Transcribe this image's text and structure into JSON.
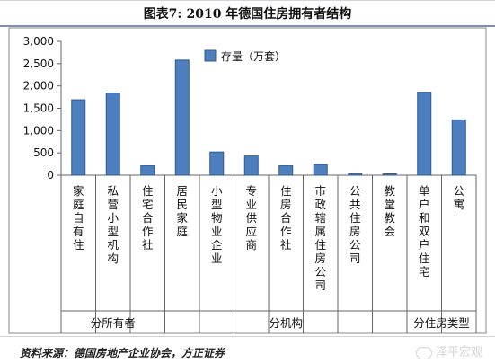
{
  "header": {
    "title": "图表7:    2010 年德国住房拥有者结构"
  },
  "footer": {
    "source": "资料来源：德国房地产企业协会，方正证券",
    "watermark": "泽平宏观"
  },
  "colors": {
    "bar": "#4d7fbf",
    "bar_stroke": "#2e5a92",
    "axis": "#666666"
  },
  "chart_data": {
    "type": "bar",
    "title": "",
    "xlabel": "",
    "ylabel": "",
    "ylim": [
      0,
      3000
    ],
    "yticks": [
      0,
      500,
      1000,
      1500,
      2000,
      2500,
      3000
    ],
    "ytick_labels": [
      "0",
      "500",
      "1,000",
      "1,500",
      "2,000",
      "2,500",
      "3,000"
    ],
    "legend_position": "top",
    "categories": [
      "家庭自有住",
      "私营小型机构",
      "住宅合作社",
      "居民家庭",
      "小型物业企业",
      "专业供应商",
      "住房合作社",
      "市政辖属住房公司",
      "公共住房公司",
      "教堂教会",
      "单户和双户住宅",
      "公寓"
    ],
    "groups": [
      {
        "label": "分所有者",
        "start": 0,
        "count": 3
      },
      {
        "label": "分机构",
        "start": 3,
        "count": 7
      },
      {
        "label": "分住房类型",
        "start": 10,
        "count": 2
      }
    ],
    "series": [
      {
        "name": "存量（万套）",
        "values": [
          1690,
          1840,
          210,
          2580,
          520,
          430,
          210,
          240,
          35,
          30,
          1860,
          1240
        ]
      }
    ]
  }
}
